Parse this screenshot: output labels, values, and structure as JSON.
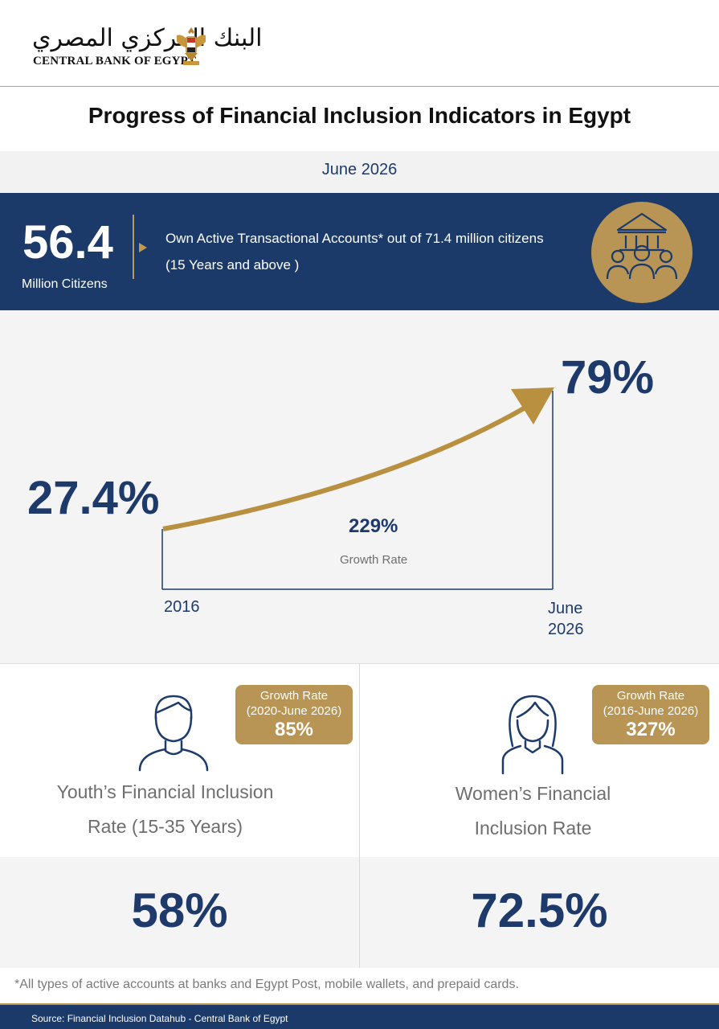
{
  "header": {
    "logo_arabic": "البنك المركزي المصري",
    "logo_english": "CENTRAL BANK OF EGYPT",
    "emblem_icon": "eagle-emblem-icon"
  },
  "title": "Progress of Financial Inclusion Indicators in Egypt",
  "date": "June 2026",
  "accounts": {
    "value": "56.4",
    "unit": "Million Citizens",
    "description_line1": "Own  Active Transactional Accounts* out of 71.4 million citizens",
    "description_line2": "(15 Years and above )",
    "icon": "bank-people-icon"
  },
  "growth": {
    "start_value": "27.4%",
    "end_value": "79%",
    "growth_rate_value": "229%",
    "growth_rate_label": "Growth Rate",
    "start_label": "2016",
    "end_label_line1": "June",
    "end_label_line2": "2026"
  },
  "chart_data": {
    "type": "line",
    "categories": [
      "2016",
      "June 2026"
    ],
    "values": [
      27.4,
      79
    ],
    "title": "",
    "xlabel": "",
    "ylabel": ""
  },
  "youth": {
    "icon": "man-icon",
    "badge_line1": "Growth Rate",
    "badge_line2": "(2020-June 2026)",
    "badge_value": "85%",
    "label_line1": "Youth’s Financial Inclusion",
    "label_line2": "Rate (15-35 Years)",
    "value": "58%"
  },
  "women": {
    "icon": "woman-icon",
    "badge_line1": "Growth Rate",
    "badge_line2": "(2016-June 2026)",
    "badge_value": "327%",
    "label_line1": "Women’s Financial",
    "label_line2": "Inclusion Rate",
    "value": "72.5%"
  },
  "footnote": "*All types of active accounts at banks and Egypt Post, mobile wallets, and prepaid cards.",
  "source": "Source: Financial Inclusion Datahub - Central Bank of Egypt",
  "colors": {
    "navy": "#1b3a6a",
    "gold": "#b89455",
    "light_gray": "#f4f4f4"
  }
}
